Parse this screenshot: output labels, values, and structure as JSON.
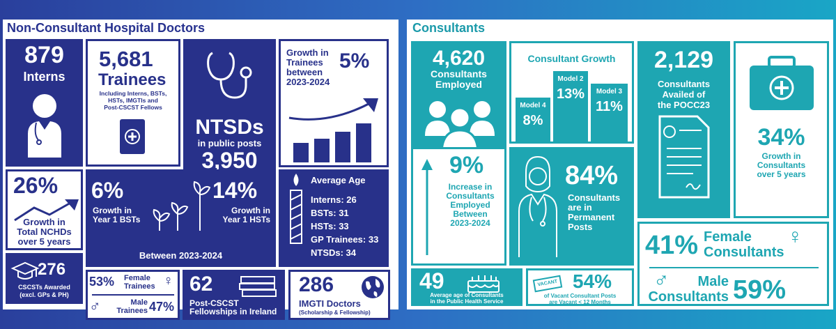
{
  "left": {
    "title": "Non-Consultant Hospital Doctors",
    "interns": {
      "value": "879",
      "label": "Interns"
    },
    "trainees": {
      "value": "5,681",
      "label": "Trainees",
      "note": [
        "Including Interns, BSTs,",
        "HSTs, IMGTIs and",
        "Post-CSCST Fellows"
      ]
    },
    "ntsds": {
      "label": "NTSDs",
      "sub": "in public posts",
      "value": "3,950"
    },
    "trainee_growth": {
      "label": [
        "Growth in",
        "Trainees",
        "between",
        "2023-2024"
      ],
      "value": "5%"
    },
    "nchd_growth": {
      "value": "26%",
      "label": [
        "Growth in",
        "Total NCHDs",
        "over 5 years"
      ]
    },
    "year1": {
      "bst_value": "6%",
      "bst_label": [
        "Growth in",
        "Year 1 BSTs"
      ],
      "hst_value": "14%",
      "hst_label": [
        "Growth in",
        "Year 1 HSTs"
      ],
      "period": "Between 2023-2024"
    },
    "age": {
      "title": "Average Age",
      "rows": [
        "Interns: 26",
        "BSTs: 31",
        "HSTs: 33",
        "GP Trainees: 33",
        "NTSDs: 34"
      ]
    },
    "cscst": {
      "value": "276",
      "label": [
        "CSCSTs Awarded",
        "(excl. GPs & PH)"
      ]
    },
    "gender": {
      "female_pct": "53%",
      "female_label": [
        "Female",
        "Trainees"
      ],
      "male_label": [
        "Male",
        "Trainees"
      ],
      "male_pct": "47%"
    },
    "fellowships": {
      "value": "62",
      "label": [
        "Post-CSCST",
        "Fellowships in Ireland"
      ]
    },
    "imgti": {
      "value": "286",
      "label": "IMGTI Doctors",
      "sub": "(Scholarship & Fellowship)"
    }
  },
  "right": {
    "title": "Consultants",
    "employed": {
      "value": "4,620",
      "label": [
        "Consultants",
        "Employed"
      ]
    },
    "growth_chart": {
      "title": "Consultant Growth",
      "bars": [
        {
          "name": "Model 4",
          "value": "8%"
        },
        {
          "name": "Model 2",
          "value": "13%"
        },
        {
          "name": "Model 3",
          "value": "11%"
        }
      ]
    },
    "pocc": {
      "value": "2,129",
      "label": [
        "Consultants",
        "Availed of",
        "the POCC23"
      ]
    },
    "growth5": {
      "value": "34%",
      "label": [
        "Growth in",
        "Consultants",
        "over 5 years"
      ]
    },
    "increase": {
      "value": "9%",
      "label": [
        "Increase in",
        "Consultants",
        "Employed",
        "Between",
        "2023-2024"
      ]
    },
    "permanent": {
      "value": "84%",
      "label": [
        "Consultants",
        "are in",
        "Permanent",
        "Posts"
      ]
    },
    "gender": {
      "female_pct": "41%",
      "female_label": [
        "Female",
        "Consultants"
      ],
      "male_label": [
        "Male",
        "Consultants"
      ],
      "male_pct": "59%"
    },
    "avg_age": {
      "value": "49",
      "label": [
        "Average age of Consultants",
        "in the Public Health Service"
      ]
    },
    "vacant": {
      "sign": "VACANT",
      "value": "54%",
      "label": [
        "of Vacant Consultant Posts",
        "are Vacant < 12 Months"
      ]
    }
  },
  "colors": {
    "navy": "#28318a",
    "teal": "#1ea6b2"
  }
}
